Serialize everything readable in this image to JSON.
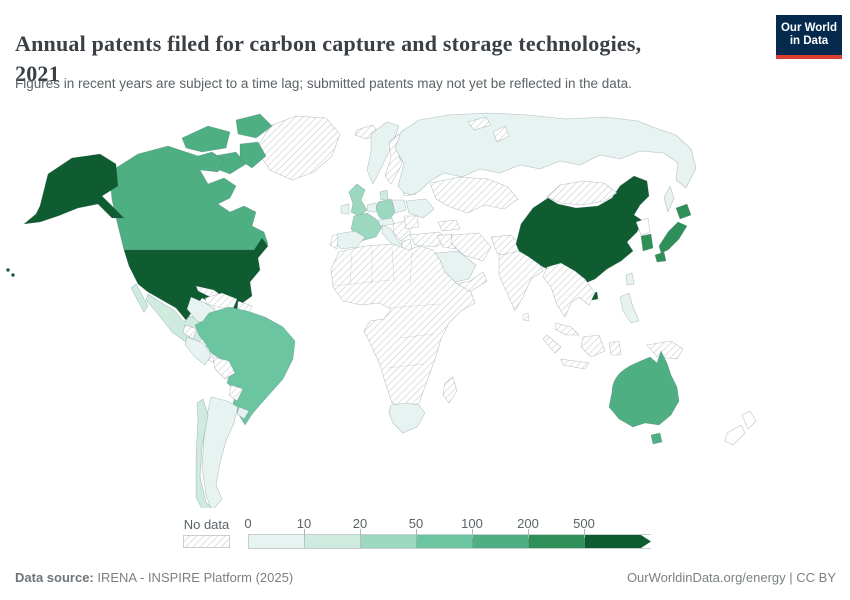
{
  "header": {
    "title_line1": "Annual patents filed for carbon capture and storage technologies,",
    "title_line2": "2021",
    "subtitle": "Figures in recent years are subject to a time lag; submitted patents may not yet be reflected in the data.",
    "logo": {
      "line1": "Our World",
      "line2": "in Data",
      "background": "#062a4e",
      "accent": "#dc3e32"
    }
  },
  "legend": {
    "no_data_label": "No data",
    "tick_labels": [
      "0",
      "10",
      "20",
      "50",
      "100",
      "200",
      "500"
    ],
    "bins": [
      {
        "range": "0-10",
        "color": "#e6f3f0"
      },
      {
        "range": "10-20",
        "color": "#cfeade"
      },
      {
        "range": "20-50",
        "color": "#9cd8c0"
      },
      {
        "range": "50-100",
        "color": "#6cc5a1"
      },
      {
        "range": "100-200",
        "color": "#4daf82"
      },
      {
        "range": "200-500",
        "color": "#2e8f58"
      },
      {
        "range": "500+",
        "color": "#0e5c30"
      }
    ],
    "no_data_pattern": {
      "background": "#ffffff",
      "line_color": "#d7dbdd",
      "border": "#c8cfd3"
    }
  },
  "footer": {
    "data_source_label": "Data source:",
    "data_source_value": "IRENA - INSPIRE Platform (2025)",
    "credit": "OurWorldinData.org/energy | CC BY"
  },
  "chart_data": {
    "type": "choropleth_world_map",
    "title": "Annual patents filed for carbon capture and storage technologies, 2021",
    "unit": "patents filed per year",
    "legend_bins": [
      "0-10",
      "10-20",
      "20-50",
      "50-100",
      "100-200",
      "200-500",
      "500+"
    ],
    "no_data_style": "diagonal gray hatching",
    "countries": {
      "United States": "500+",
      "China": "500+",
      "Japan": "200-500",
      "South Korea": "200-500",
      "Canada": "100-200",
      "Australia": "100-200",
      "Brazil": "50-100",
      "United Kingdom": "20-50",
      "France": "20-50",
      "Germany": "20-50",
      "Mexico": "10-20",
      "Chile": "10-20",
      "Denmark": "10-20",
      "Russia": "0-10",
      "Norway": "0-10",
      "Finland": "0-10",
      "Ireland": "0-10",
      "Netherlands": "0-10",
      "Switzerland-Austria": "0-10",
      "Spain": "0-10",
      "Italy": "0-10",
      "Poland": "0-10",
      "Ukraine": "0-10",
      "Colombia": "0-10",
      "Peru": "0-10",
      "Argentina": "0-10",
      "Uruguay": "0-10",
      "South Africa": "0-10",
      "Saudi Arabia": "0-10",
      "Taiwan": "0-10",
      "Philippines": "0-10",
      "Greenland": "no data",
      "Iceland": "no data",
      "Svalbard": "no data",
      "Novaya Zemlya": "no data",
      "Sweden": "no data",
      "Baltics": "no data",
      "Portugal": "no data",
      "Balkans": "no data",
      "Romania": "no data",
      "Greece": "no data",
      "Turkey": "no data",
      "Caucasus": "no data",
      "Iraq-Syria": "no data",
      "Iran": "no data",
      "Yemen-Oman": "no data",
      "Central Asia": "no data",
      "Afghanistan-Pakistan": "no data",
      "Mongolia": "no data",
      "India": "no data",
      "Sri Lanka": "no data",
      "Indochina": "no data",
      "Malaysia": "no data",
      "Sumatra": "no data",
      "Java": "no data",
      "Borneo": "no data",
      "Sulawesi": "no data",
      "Papua New Guinea": "no data",
      "Africa": "no data",
      "Madagascar": "no data",
      "Venezuela": "no data",
      "Guyana": "no data",
      "Ecuador": "no data",
      "Bolivia": "no data",
      "Paraguay": "no data",
      "Central America": "no data",
      "Cuba": "no data",
      "Hispaniola": "no data"
    }
  }
}
